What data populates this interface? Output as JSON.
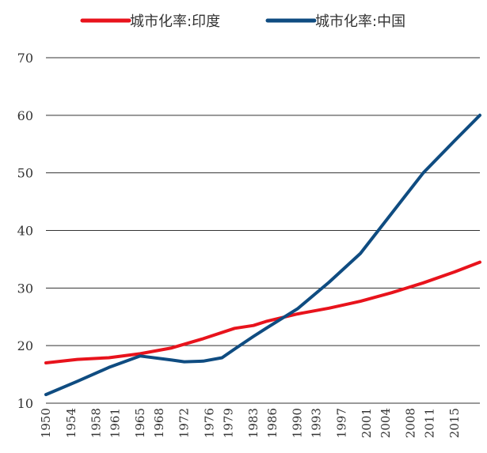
{
  "chart_data": {
    "type": "line",
    "title": "",
    "xlabel": "",
    "ylabel": "",
    "ylim": [
      10,
      70
    ],
    "xlim": [
      1950,
      2019
    ],
    "grid": true,
    "legend_position": "top",
    "yticks": [
      10,
      20,
      30,
      40,
      50,
      60,
      70
    ],
    "xticks": [
      1950,
      1954,
      1958,
      1961,
      1965,
      1968,
      1972,
      1976,
      1979,
      1983,
      1986,
      1990,
      1993,
      1997,
      2001,
      2004,
      2008,
      2011,
      2015
    ],
    "series": [
      {
        "name": "城市化率:印度",
        "color": "#e8131c",
        "x": [
          1950,
          1955,
          1960,
          1965,
          1970,
          1975,
          1980,
          1983,
          1985,
          1990,
          1995,
          2000,
          2005,
          2010,
          2015,
          2019
        ],
        "values": [
          17.0,
          17.6,
          17.9,
          18.6,
          19.6,
          21.2,
          23.0,
          23.5,
          24.2,
          25.5,
          26.5,
          27.7,
          29.2,
          30.9,
          32.8,
          34.5
        ]
      },
      {
        "name": "城市化率:中国",
        "color": "#0f4c81",
        "x": [
          1950,
          1955,
          1960,
          1965,
          1970,
          1972,
          1975,
          1978,
          1980,
          1983,
          1985,
          1990,
          1995,
          2000,
          2005,
          2010,
          2015,
          2019
        ],
        "values": [
          11.5,
          13.8,
          16.2,
          18.2,
          17.5,
          17.2,
          17.3,
          17.9,
          19.4,
          21.6,
          23.0,
          26.4,
          31.0,
          36.0,
          43.0,
          50.0,
          55.6,
          60.0
        ]
      }
    ]
  }
}
